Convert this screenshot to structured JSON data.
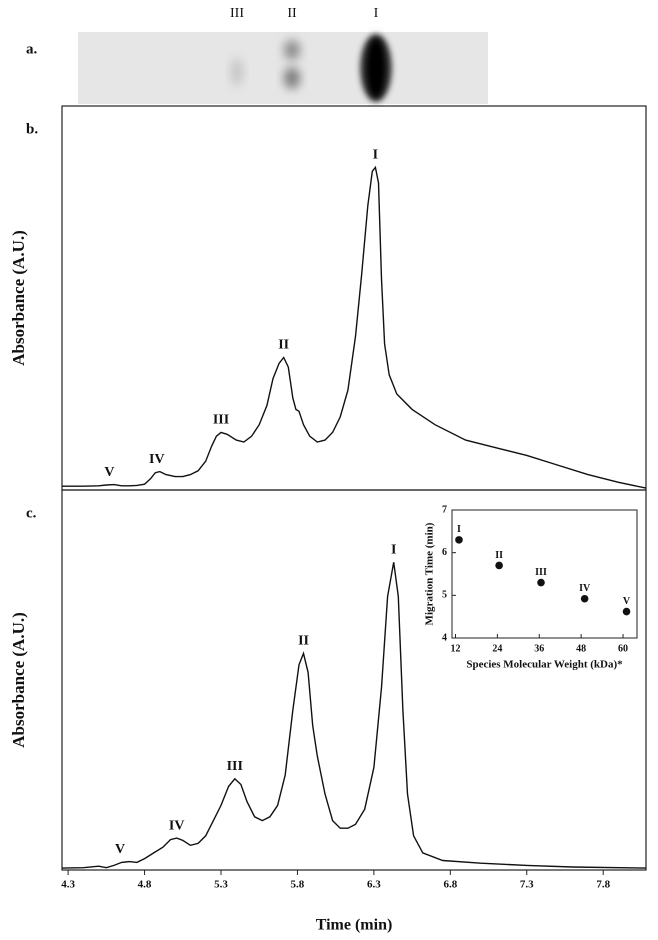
{
  "chart_data": [
    {
      "type": "gel",
      "label": "a.",
      "lanes": [
        "III",
        "II",
        "I"
      ]
    },
    {
      "type": "line",
      "label": "b.",
      "ylabel": "Absorbance (A.U.)",
      "color": "#111111",
      "xlim": [
        4.26,
        8.08
      ],
      "ylim": [
        0,
        1
      ],
      "x": [
        4.26,
        4.4,
        4.5,
        4.55,
        4.6,
        4.65,
        4.7,
        4.75,
        4.8,
        4.84,
        4.87,
        4.9,
        4.94,
        5.0,
        5.05,
        5.1,
        5.15,
        5.2,
        5.24,
        5.27,
        5.3,
        5.34,
        5.4,
        5.45,
        5.5,
        5.55,
        5.6,
        5.64,
        5.68,
        5.71,
        5.74,
        5.77,
        5.79,
        5.81,
        5.84,
        5.88,
        5.93,
        5.98,
        6.03,
        6.08,
        6.13,
        6.18,
        6.22,
        6.26,
        6.29,
        6.31,
        6.33,
        6.35,
        6.37,
        6.4,
        6.45,
        6.55,
        6.7,
        6.9,
        7.1,
        7.3,
        7.5,
        7.7,
        7.9,
        8.08
      ],
      "y": [
        0.01,
        0.01,
        0.011,
        0.013,
        0.014,
        0.011,
        0.011,
        0.012,
        0.015,
        0.03,
        0.045,
        0.048,
        0.04,
        0.035,
        0.035,
        0.04,
        0.05,
        0.075,
        0.115,
        0.14,
        0.15,
        0.145,
        0.13,
        0.125,
        0.14,
        0.17,
        0.22,
        0.29,
        0.33,
        0.345,
        0.32,
        0.24,
        0.21,
        0.205,
        0.17,
        0.14,
        0.125,
        0.13,
        0.15,
        0.19,
        0.26,
        0.4,
        0.56,
        0.74,
        0.83,
        0.84,
        0.8,
        0.55,
        0.38,
        0.3,
        0.25,
        0.21,
        0.17,
        0.13,
        0.11,
        0.09,
        0.065,
        0.04,
        0.02,
        0.005
      ],
      "annotations": [
        {
          "text": "V",
          "x": 4.57,
          "y": 0.013
        },
        {
          "text": "IV",
          "x": 4.88,
          "y": 0.048
        },
        {
          "text": "III",
          "x": 5.3,
          "y": 0.15
        },
        {
          "text": "II",
          "x": 5.71,
          "y": 0.345
        },
        {
          "text": "I",
          "x": 6.31,
          "y": 0.84
        }
      ]
    },
    {
      "type": "line",
      "label": "c.",
      "ylabel": "Absorbance (A.U.)",
      "xlabel": "Time (min)",
      "color": "#111111",
      "xlim": [
        4.26,
        8.08
      ],
      "ylim": [
        0,
        1
      ],
      "xticks": [
        4.3,
        4.8,
        5.3,
        5.8,
        6.3,
        6.8,
        7.3,
        7.8
      ],
      "x": [
        4.26,
        4.4,
        4.5,
        4.55,
        4.6,
        4.65,
        4.7,
        4.75,
        4.8,
        4.86,
        4.92,
        4.97,
        5.01,
        5.05,
        5.1,
        5.15,
        5.2,
        5.25,
        5.3,
        5.35,
        5.39,
        5.43,
        5.47,
        5.52,
        5.57,
        5.62,
        5.67,
        5.72,
        5.77,
        5.81,
        5.84,
        5.87,
        5.9,
        5.93,
        5.98,
        6.03,
        6.08,
        6.13,
        6.18,
        6.24,
        6.3,
        6.35,
        6.39,
        6.43,
        6.46,
        6.49,
        6.52,
        6.56,
        6.62,
        6.75,
        7.0,
        7.3,
        7.6,
        8.08
      ],
      "y": [
        0.005,
        0.006,
        0.01,
        0.006,
        0.012,
        0.02,
        0.022,
        0.02,
        0.03,
        0.045,
        0.06,
        0.08,
        0.084,
        0.078,
        0.065,
        0.07,
        0.09,
        0.13,
        0.17,
        0.22,
        0.24,
        0.225,
        0.18,
        0.14,
        0.13,
        0.14,
        0.17,
        0.25,
        0.42,
        0.54,
        0.57,
        0.52,
        0.38,
        0.3,
        0.2,
        0.13,
        0.11,
        0.11,
        0.12,
        0.16,
        0.27,
        0.48,
        0.72,
        0.81,
        0.72,
        0.42,
        0.2,
        0.09,
        0.045,
        0.025,
        0.018,
        0.012,
        0.008,
        0.005
      ],
      "annotations": [
        {
          "text": "V",
          "x": 4.64,
          "y": 0.022
        },
        {
          "text": "IV",
          "x": 5.01,
          "y": 0.084
        },
        {
          "text": "III",
          "x": 5.39,
          "y": 0.24
        },
        {
          "text": "II",
          "x": 5.84,
          "y": 0.57
        },
        {
          "text": "I",
          "x": 6.43,
          "y": 0.81
        }
      ]
    },
    {
      "type": "scatter",
      "xlabel": "Species Molecular Weight (kDa)*",
      "ylabel": "Migration Time (min)",
      "color": "#111111",
      "xlim": [
        11,
        64
      ],
      "ylim": [
        4,
        7
      ],
      "xticks": [
        12,
        24,
        36,
        48,
        60
      ],
      "yticks": [
        4,
        5,
        6,
        7
      ],
      "x": [
        13,
        24.5,
        36.5,
        49,
        61
      ],
      "y": [
        6.3,
        5.7,
        5.3,
        4.92,
        4.62
      ],
      "point_labels": [
        "I",
        "II",
        "III",
        "IV",
        "V"
      ]
    }
  ]
}
